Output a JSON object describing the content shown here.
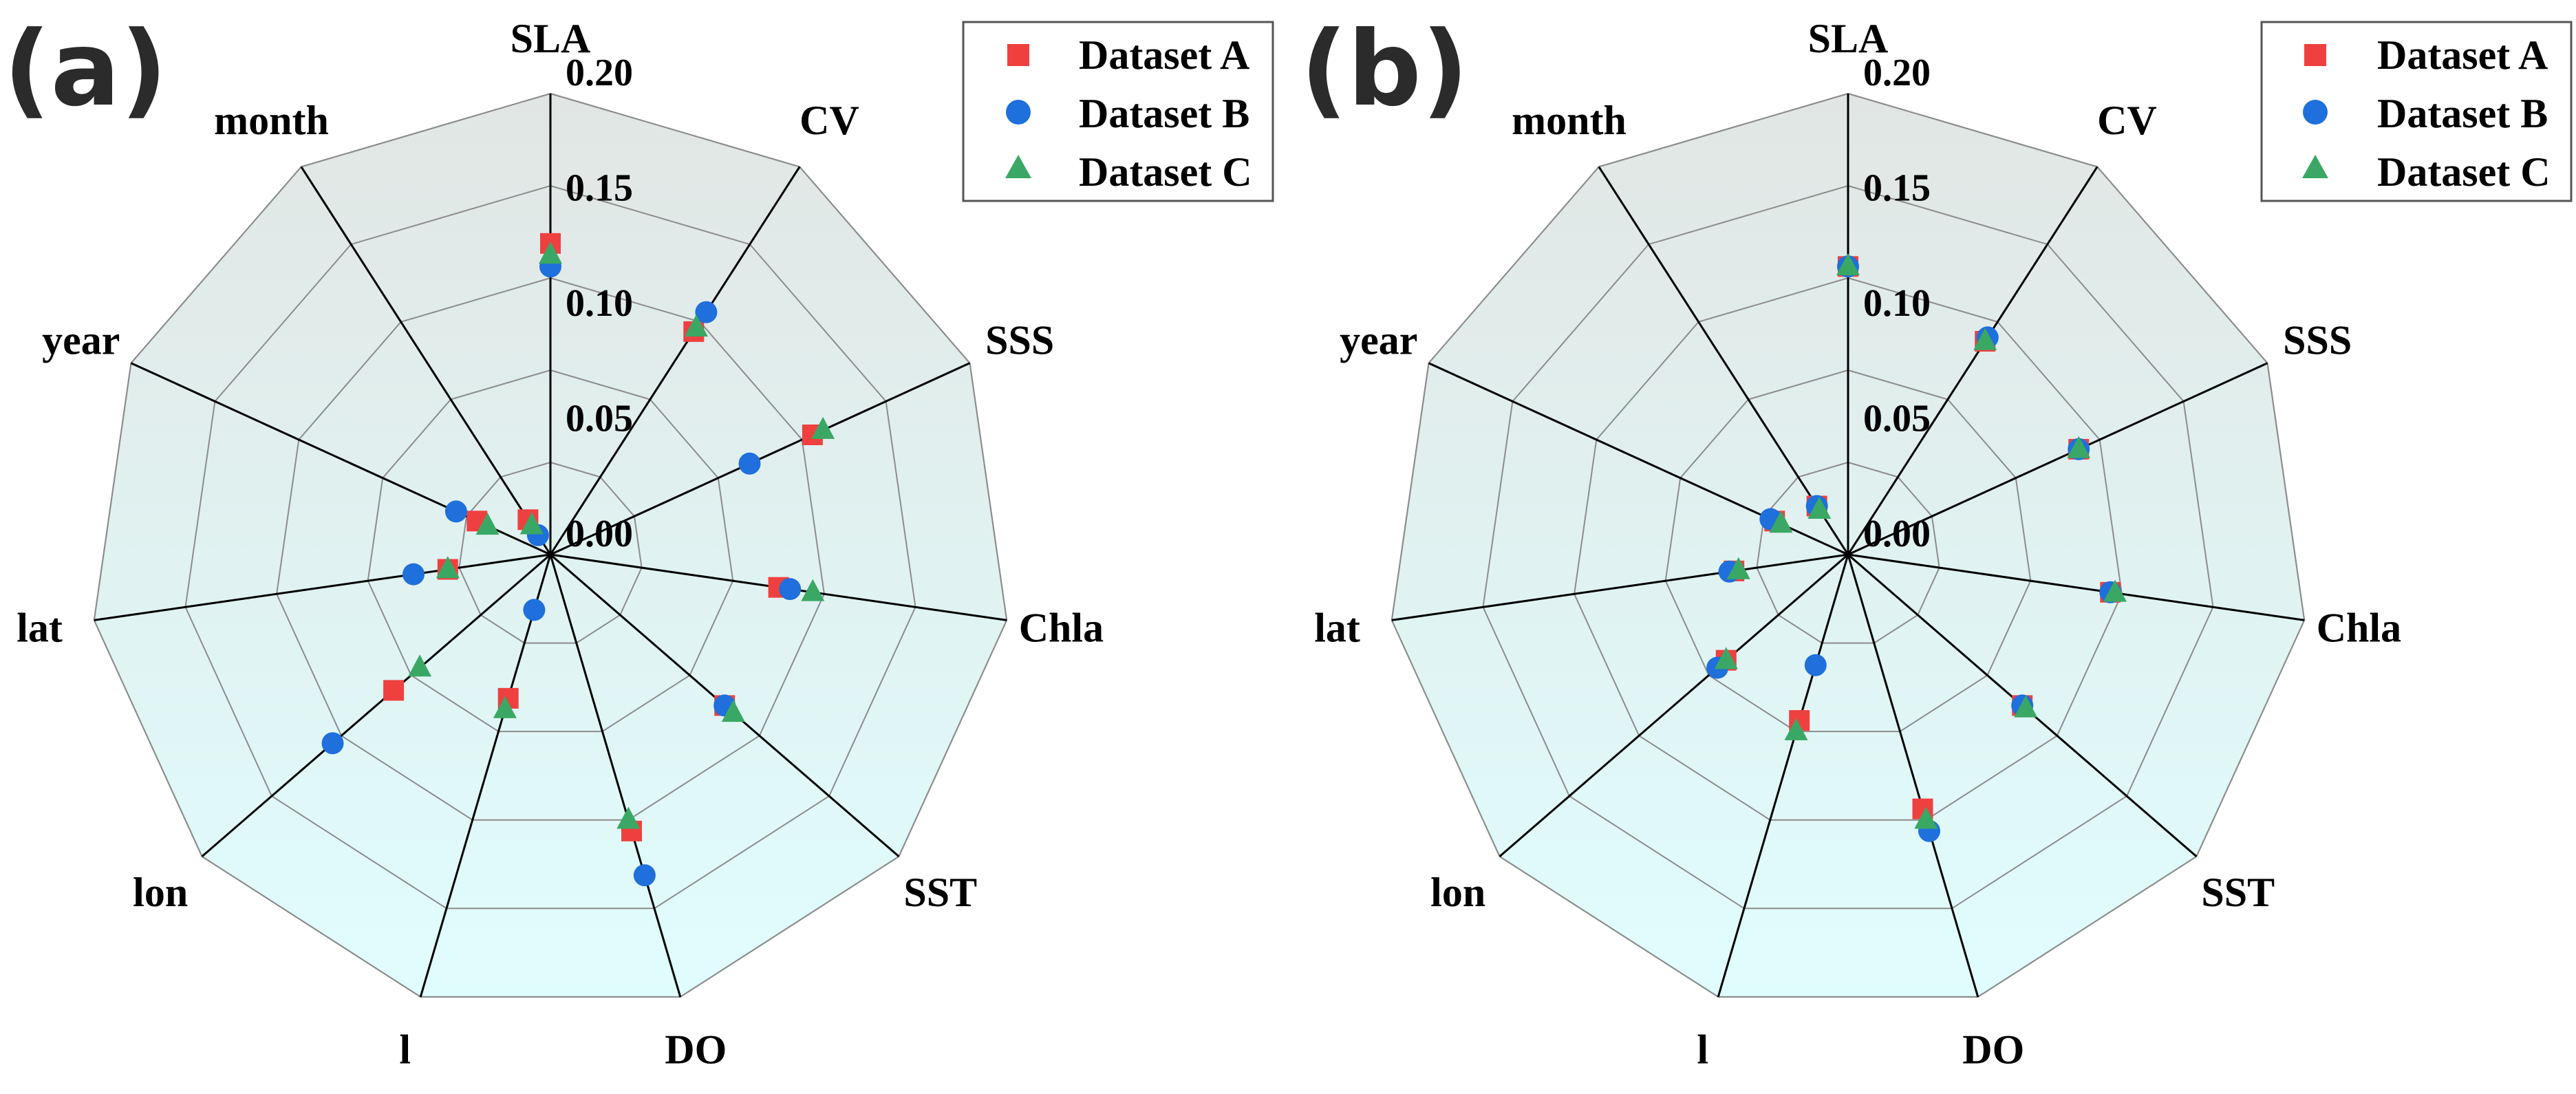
{
  "colors": {
    "dataset_a": "#ef4040",
    "dataset_b": "#1f6fdc",
    "dataset_c": "#3aa864",
    "fill_top": "#e1e6e4",
    "fill_bottom": "#e0fdfd",
    "grid": "#8c8c8c",
    "spoke": "#000000"
  },
  "chart_data": [
    {
      "type": "radar",
      "panel_label": "(a)",
      "axes": [
        "SLA",
        "CV",
        "SSS",
        "Chla",
        "SST",
        "DO",
        "l",
        "lon",
        "lat",
        "year",
        "month"
      ],
      "rlim": [
        0,
        0.2
      ],
      "rticks": [
        0.0,
        0.05,
        0.1,
        0.15,
        0.2
      ],
      "rtick_labels": [
        "0.00",
        "0.05",
        "0.10",
        "0.15",
        "0.20"
      ],
      "legend": {
        "position": "top-right",
        "entries": [
          "Dataset A",
          "Dataset B",
          "Dataset C"
        ]
      },
      "series": [
        {
          "name": "Dataset A",
          "marker": "square",
          "values": [
            0.135,
            0.115,
            0.125,
            0.1,
            0.1,
            0.125,
            0.065,
            0.09,
            0.045,
            0.035,
            0.018
          ]
        },
        {
          "name": "Dataset B",
          "marker": "circle",
          "values": [
            0.125,
            0.125,
            0.095,
            0.105,
            0.1,
            0.145,
            0.025,
            0.125,
            0.06,
            0.045,
            0.01
          ]
        },
        {
          "name": "Dataset C",
          "marker": "triangle",
          "values": [
            0.13,
            0.117,
            0.13,
            0.115,
            0.105,
            0.12,
            0.07,
            0.075,
            0.045,
            0.03,
            0.015
          ]
        }
      ]
    },
    {
      "type": "radar",
      "panel_label": "(b)",
      "axes": [
        "SLA",
        "CV",
        "SSS",
        "Chla",
        "SST",
        "DO",
        "l",
        "lon",
        "lat",
        "year",
        "month"
      ],
      "rlim": [
        0,
        0.2
      ],
      "rticks": [
        0.0,
        0.05,
        0.1,
        0.15,
        0.2
      ],
      "rtick_labels": [
        "0.00",
        "0.05",
        "0.10",
        "0.15",
        "0.20"
      ],
      "legend": {
        "position": "top-right",
        "entries": [
          "Dataset A",
          "Dataset B",
          "Dataset C"
        ]
      },
      "series": [
        {
          "name": "Dataset A",
          "marker": "square",
          "values": [
            0.125,
            0.11,
            0.11,
            0.115,
            0.1,
            0.115,
            0.075,
            0.07,
            0.05,
            0.035,
            0.025
          ]
        },
        {
          "name": "Dataset B",
          "marker": "circle",
          "values": [
            0.125,
            0.112,
            0.11,
            0.115,
            0.1,
            0.125,
            0.05,
            0.075,
            0.052,
            0.037,
            0.025
          ]
        },
        {
          "name": "Dataset C",
          "marker": "triangle",
          "values": [
            0.125,
            0.11,
            0.11,
            0.117,
            0.102,
            0.12,
            0.08,
            0.07,
            0.048,
            0.032,
            0.023
          ]
        }
      ]
    }
  ]
}
